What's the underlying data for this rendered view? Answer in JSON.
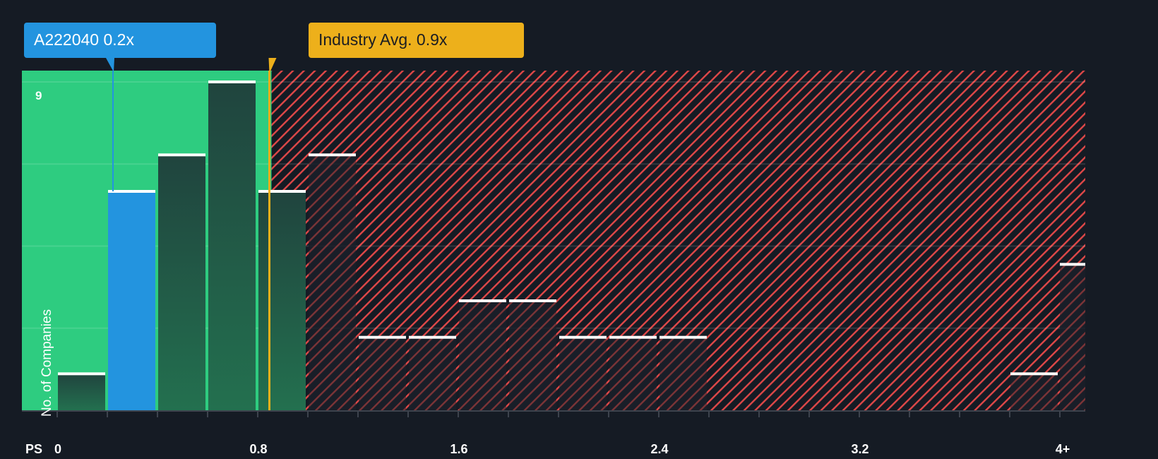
{
  "chart_data": {
    "type": "bar",
    "title": "",
    "xlabel": "PS",
    "ylabel": "No. of Companies",
    "x_tick_labels": [
      "0",
      "0.8",
      "1.6",
      "2.4",
      "3.2",
      "4+"
    ],
    "x_tick_values": [
      0,
      0.8,
      1.6,
      2.4,
      3.2,
      4.0
    ],
    "y_tick_labels": [
      "9"
    ],
    "ylim": [
      0,
      9
    ],
    "grid": true,
    "bin_width": 0.2,
    "categories": [
      "0-0.2",
      "0.2-0.4",
      "0.4-0.6",
      "0.6-0.8",
      "0.8-1.0",
      "1.0-1.2",
      "1.2-1.4",
      "1.4-1.6",
      "1.6-1.8",
      "1.8-2.0",
      "2.0-2.2",
      "2.2-2.4",
      "2.4-2.6",
      "2.6-2.8",
      "2.8-3.0",
      "3.0-3.2",
      "3.2-3.4",
      "3.4-3.6",
      "3.6-3.8",
      "3.8-4.0",
      "4+"
    ],
    "values": [
      1,
      6,
      7,
      9,
      6,
      7,
      2,
      2,
      3,
      3,
      2,
      2,
      2,
      0,
      0,
      0,
      0,
      0,
      0,
      1,
      4
    ],
    "highlight_bin": "0.2-0.4",
    "annotations": [
      {
        "label": "A222040 0.2x",
        "x": 0.2,
        "color": "#2394df"
      },
      {
        "label": "Industry Avg. 0.9x",
        "x": 0.9,
        "color": "#edb01b"
      }
    ],
    "regions": [
      {
        "name": "undervalued",
        "from": 0,
        "to": 0.9,
        "color": "#2ecc80"
      },
      {
        "name": "overvalued",
        "from": 0.9,
        "to": 4.2,
        "color": "#e04848",
        "pattern": "hatched"
      }
    ]
  },
  "labels": {
    "company_callout": "A222040 0.2x",
    "industry_callout": "Industry Avg. 0.9x",
    "x_axis_name": "PS",
    "y_axis_name": "No. of Companies",
    "y_max_label": "9"
  },
  "colors": {
    "background": "#151b24",
    "green_zone": "#2ecc80",
    "green_bar": "#1f4a40",
    "highlight_bar": "#2394df",
    "hatch": "#e04848",
    "industry_line": "#edb01b",
    "bar_cap": "#ffffff"
  }
}
